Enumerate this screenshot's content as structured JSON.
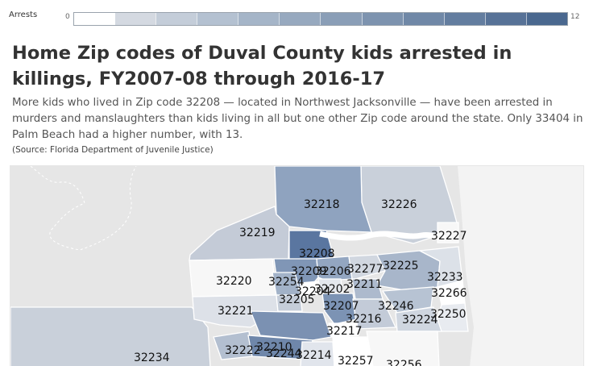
{
  "legend": {
    "title": "Arrests",
    "min": "0",
    "max": "12",
    "steps": [
      "#ffffff",
      "#d4d9e1",
      "#c4cdd9",
      "#b4c1d1",
      "#a5b5c8",
      "#97a9bf",
      "#8a9eb7",
      "#7d93af",
      "#7088a7",
      "#637d9f",
      "#577297",
      "#4a688f"
    ]
  },
  "title": "Home Zip codes of Duval County kids arrested in killings, FY2007-08 through 2016-17",
  "description": "More kids who lived in Zip code 32208 — located in Northwest Jacksonville — have been arrested in murders and manslaughters than kids living in all but one other Zip code around the state. Only 33404 in Palm Beach had a higher number, with 13.",
  "source": "(Source: Florida Department of Juvenile Justice)",
  "map": {
    "zips": [
      {
        "code": "32218",
        "fill": "#8fa3bf"
      },
      {
        "code": "32226",
        "fill": "#c9d0da"
      },
      {
        "code": "32219",
        "fill": "#c4cbd7"
      },
      {
        "code": "32208",
        "fill": "#5a76a0"
      },
      {
        "code": "32227",
        "fill": "#f7f7f7"
      },
      {
        "code": "32209",
        "fill": "#8096b6"
      },
      {
        "code": "32206",
        "fill": "#93a6c1"
      },
      {
        "code": "32277",
        "fill": "#d1d7e0"
      },
      {
        "code": "32225",
        "fill": "#a8b6ca"
      },
      {
        "code": "32220",
        "fill": "#f7f7f7"
      },
      {
        "code": "32254",
        "fill": "#a2b2c8"
      },
      {
        "code": "32211",
        "fill": "#adbacd"
      },
      {
        "code": "32233",
        "fill": "#dce1e8"
      },
      {
        "code": "32204",
        "fill": "#ffffff"
      },
      {
        "code": "32202",
        "fill": "#e3e7ed"
      },
      {
        "code": "32266",
        "fill": "#ffffff"
      },
      {
        "code": "32205",
        "fill": "#c5cdd9"
      },
      {
        "code": "32207",
        "fill": "#7c93b4"
      },
      {
        "code": "32246",
        "fill": "#b7c3d3"
      },
      {
        "code": "32221",
        "fill": "#dde1e8"
      },
      {
        "code": "32216",
        "fill": "#c3cbd8"
      },
      {
        "code": "32224",
        "fill": "#cfd6e0"
      },
      {
        "code": "32250",
        "fill": "#e8ebf0"
      },
      {
        "code": "32217",
        "fill": "#ffffff"
      },
      {
        "code": "32210",
        "fill": "#7b91b2"
      },
      {
        "code": "32222",
        "fill": "#b3bfd0"
      },
      {
        "code": "32244",
        "fill": "#6f87aa"
      },
      {
        "code": "32214",
        "fill": "#e1e5ec"
      },
      {
        "code": "32257",
        "fill": "#ffffff"
      },
      {
        "code": "32256",
        "fill": "#f7f7f7"
      },
      {
        "code": "32234",
        "fill": "#c9d0da"
      }
    ]
  }
}
